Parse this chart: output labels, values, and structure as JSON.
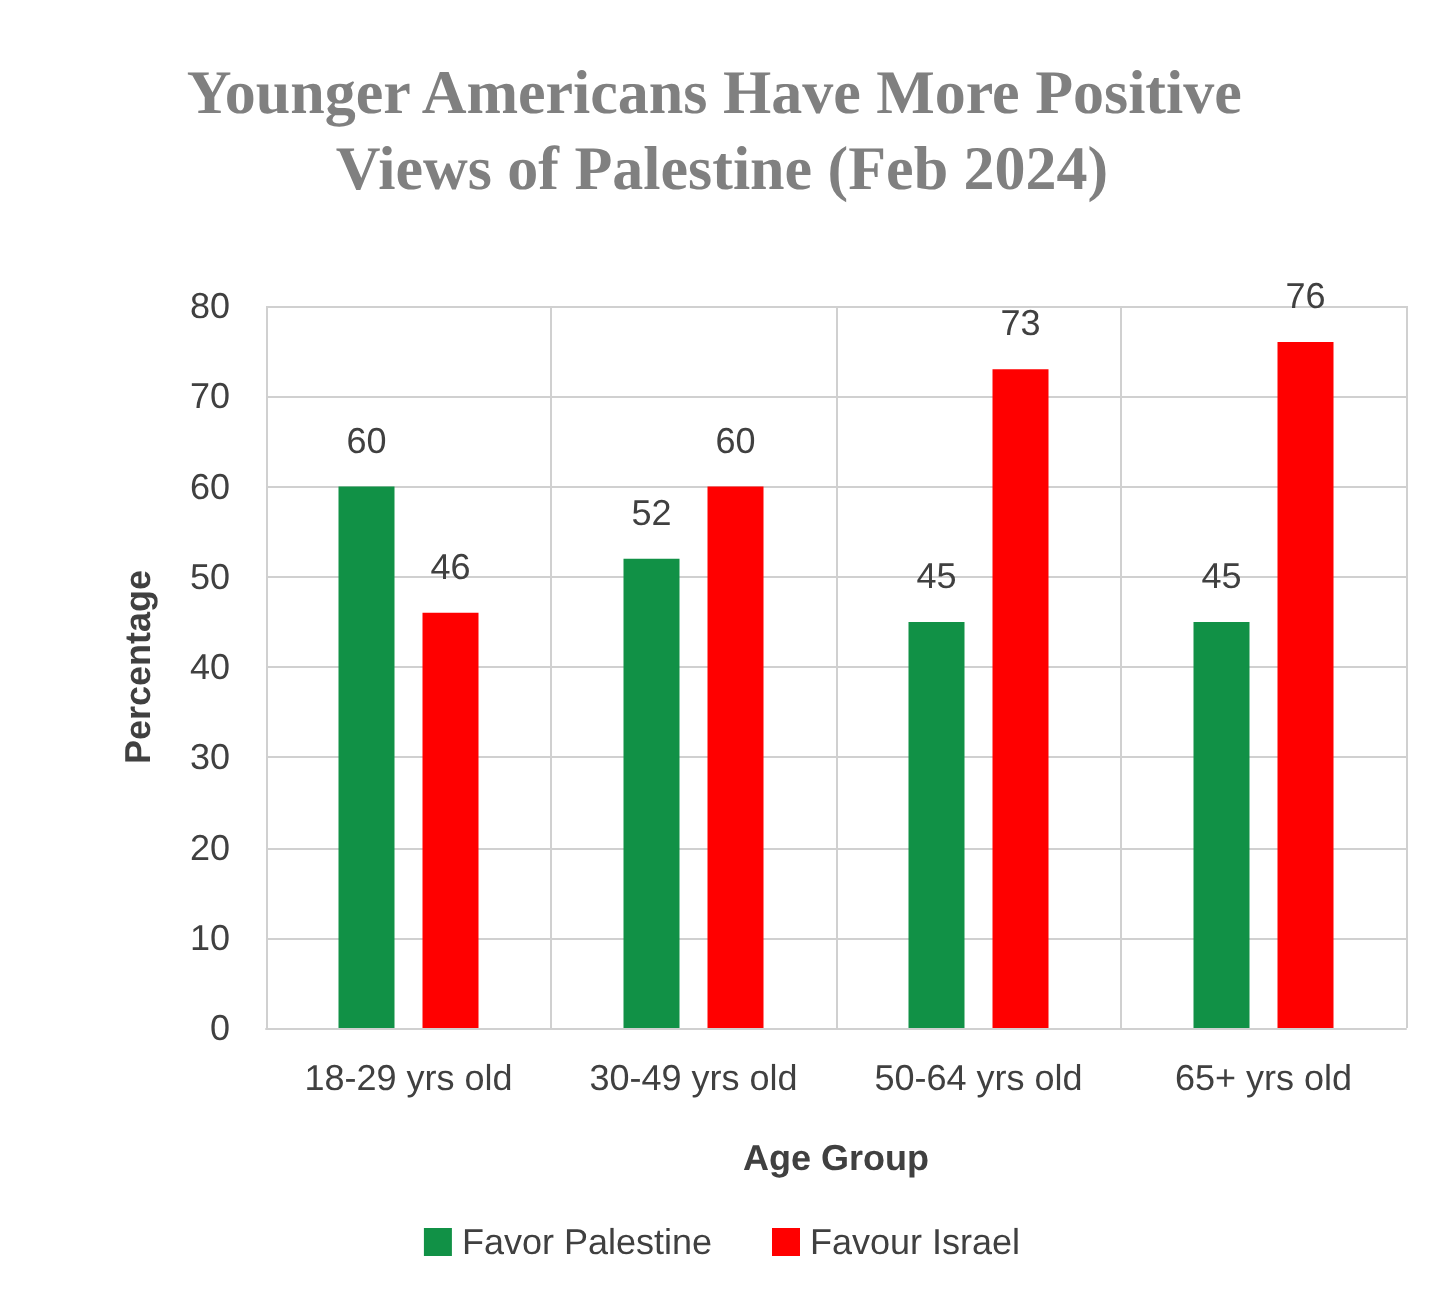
{
  "chart_data": {
    "type": "bar",
    "title": "Younger Americans Have More Positive Views of Palestine (Feb 2024)",
    "xlabel": "Age Group",
    "ylabel": "Percentage",
    "categories": [
      "18-29 yrs old",
      "30-49 yrs old",
      "50-64 yrs old",
      "65+ yrs old"
    ],
    "series": [
      {
        "name": "Favor Palestine",
        "color": "#119146",
        "values": [
          60,
          52,
          45,
          45
        ]
      },
      {
        "name": "Favour Israel",
        "color": "#ff0000",
        "values": [
          46,
          60,
          73,
          76
        ]
      }
    ],
    "ylim": [
      0,
      80
    ],
    "yticks": [
      0,
      10,
      20,
      30,
      40,
      50,
      60,
      70,
      80
    ],
    "grid": true,
    "legend": "bottom",
    "data_labels": true
  }
}
